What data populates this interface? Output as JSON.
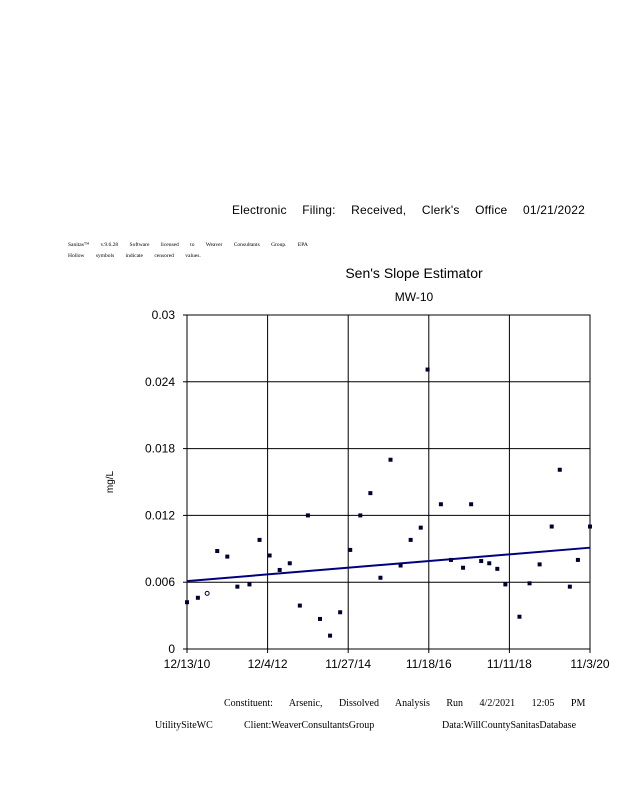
{
  "document": {
    "header": "Electronic Filing: Received, Clerk's Office 01/21/2022",
    "software_line": "Sanitas™ v.9.6.28 Software licensed to Weaver Consultants Group. EPA",
    "hollow_line": "Hollow symbols indicate censored values.",
    "constituent_line": "Constituent: Arsenic, Dissolved Analysis Run 4/2/2021 12:05 PM",
    "site": "UtilitySiteWC",
    "client": "Client:WeaverConsultantsGroup",
    "database": "Data:WillCountySanitasDatabase"
  },
  "chart_data": {
    "type": "scatter",
    "title": "Sen's Slope Estimator",
    "subtitle": "MW-10",
    "ylabel": "mg/L",
    "xlabel": "",
    "x_tick_labels": [
      "12/13/10",
      "12/4/12",
      "11/27/14",
      "11/18/16",
      "11/11/18",
      "11/3/20"
    ],
    "y_tick_labels": [
      "0",
      "0.006",
      "0.012",
      "0.018",
      "0.024",
      "0.03"
    ],
    "ylim": [
      0,
      0.03
    ],
    "grid": true,
    "colors": {
      "points": "#000033",
      "trend": "#00007f",
      "grid": "#000000"
    },
    "points": [
      {
        "x": 0.0,
        "y": 0.0042,
        "censored": false
      },
      {
        "x": 0.27,
        "y": 0.0046,
        "censored": false
      },
      {
        "x": 0.5,
        "y": 0.005,
        "censored": true
      },
      {
        "x": 0.75,
        "y": 0.0088,
        "censored": false
      },
      {
        "x": 1.0,
        "y": 0.0083,
        "censored": false
      },
      {
        "x": 1.25,
        "y": 0.0056,
        "censored": false
      },
      {
        "x": 1.55,
        "y": 0.0058,
        "censored": false
      },
      {
        "x": 1.8,
        "y": 0.0098,
        "censored": false
      },
      {
        "x": 2.05,
        "y": 0.0084,
        "censored": false
      },
      {
        "x": 2.3,
        "y": 0.0071,
        "censored": false
      },
      {
        "x": 2.55,
        "y": 0.0077,
        "censored": false
      },
      {
        "x": 2.8,
        "y": 0.0039,
        "censored": false
      },
      {
        "x": 3.0,
        "y": 0.012,
        "censored": false
      },
      {
        "x": 3.3,
        "y": 0.0027,
        "censored": false
      },
      {
        "x": 3.55,
        "y": 0.0012,
        "censored": false
      },
      {
        "x": 3.8,
        "y": 0.0033,
        "censored": false
      },
      {
        "x": 4.05,
        "y": 0.0089,
        "censored": false
      },
      {
        "x": 4.3,
        "y": 0.012,
        "censored": false
      },
      {
        "x": 4.55,
        "y": 0.014,
        "censored": false
      },
      {
        "x": 4.8,
        "y": 0.0064,
        "censored": false
      },
      {
        "x": 5.05,
        "y": 0.017,
        "censored": false
      },
      {
        "x": 5.3,
        "y": 0.0075,
        "censored": false
      },
      {
        "x": 5.55,
        "y": 0.0098,
        "censored": false
      },
      {
        "x": 5.8,
        "y": 0.0109,
        "censored": false
      },
      {
        "x": 5.97,
        "y": 0.0251,
        "censored": false
      },
      {
        "x": 6.3,
        "y": 0.013,
        "censored": false
      },
      {
        "x": 6.55,
        "y": 0.008,
        "censored": false
      },
      {
        "x": 6.85,
        "y": 0.0073,
        "censored": false
      },
      {
        "x": 7.05,
        "y": 0.013,
        "censored": false
      },
      {
        "x": 7.3,
        "y": 0.0079,
        "censored": false
      },
      {
        "x": 7.5,
        "y": 0.0077,
        "censored": false
      },
      {
        "x": 7.7,
        "y": 0.0072,
        "censored": false
      },
      {
        "x": 7.9,
        "y": 0.0058,
        "censored": false
      },
      {
        "x": 8.25,
        "y": 0.0029,
        "censored": false
      },
      {
        "x": 8.5,
        "y": 0.0059,
        "censored": false
      },
      {
        "x": 8.75,
        "y": 0.0076,
        "censored": false
      },
      {
        "x": 9.05,
        "y": 0.011,
        "censored": false
      },
      {
        "x": 9.25,
        "y": 0.0161,
        "censored": false
      },
      {
        "x": 9.5,
        "y": 0.0056,
        "censored": false
      },
      {
        "x": 9.7,
        "y": 0.008,
        "censored": false
      },
      {
        "x": 10.0,
        "y": 0.011,
        "censored": false
      }
    ],
    "trend_line": {
      "y_start": 0.0061,
      "y_end": 0.0091
    },
    "xlim": [
      0,
      10
    ]
  }
}
